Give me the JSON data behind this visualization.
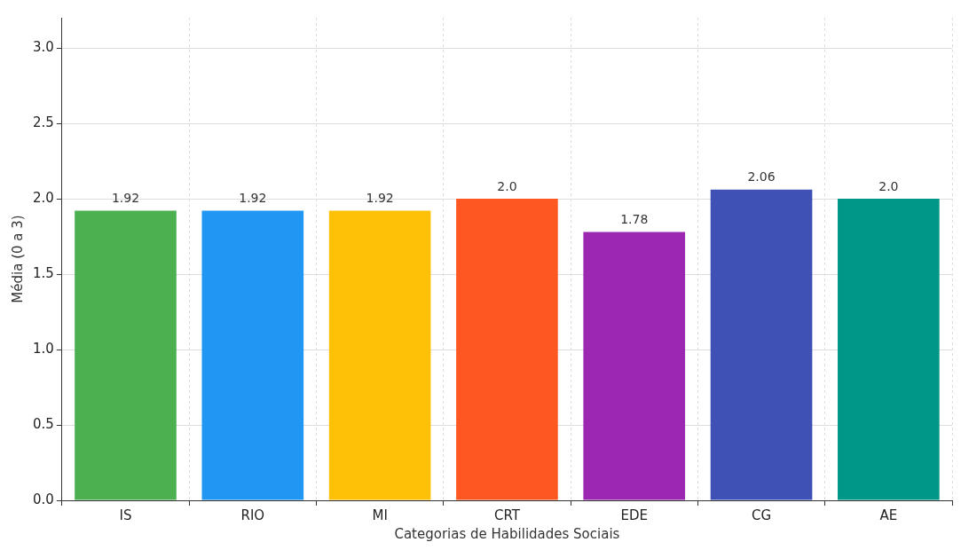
{
  "chart_data": {
    "type": "bar",
    "xlabel": "Categorias de Habilidades Sociais",
    "ylabel": "Média (0 a 3)",
    "categories": [
      "IS",
      "RIO",
      "MI",
      "CRT",
      "EDE",
      "CG",
      "AE"
    ],
    "values": [
      1.92,
      1.92,
      1.92,
      2.0,
      1.78,
      2.06,
      2.0
    ],
    "colors": [
      "#4caf50",
      "#2196f3",
      "#ffc107",
      "#ff5722",
      "#9c27b0",
      "#3f51b5",
      "#009688"
    ],
    "value_labels": [
      "1.92",
      "1.92",
      "1.92",
      "2.0",
      "1.78",
      "2.06",
      "2.0"
    ],
    "ylim": [
      0,
      3.2
    ],
    "yticks": [
      {
        "value": 0,
        "label": "0.0"
      },
      {
        "value": 0.5,
        "label": "0.5"
      },
      {
        "value": 1,
        "label": "1.0"
      },
      {
        "value": 1.5,
        "label": "1.5"
      },
      {
        "value": 2,
        "label": "2.0"
      },
      {
        "value": 2.5,
        "label": "2.5"
      },
      {
        "value": 3,
        "label": "3.0"
      }
    ],
    "grid": true
  }
}
